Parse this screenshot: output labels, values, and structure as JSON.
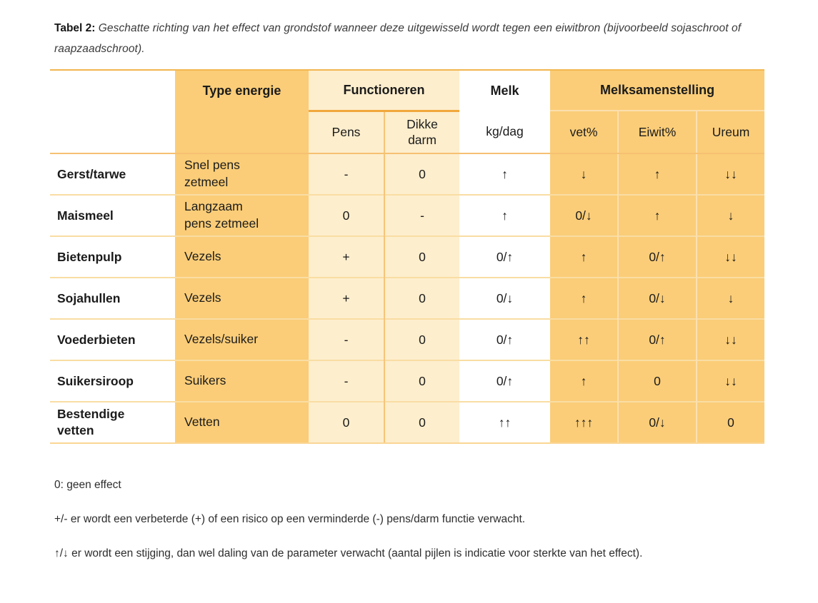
{
  "caption": {
    "label": "Tabel 2:",
    "text": "Geschatte richting van het effect van grondstof wanneer deze uitgewisseld wordt tegen een eiwitbron (bijvoorbeeld sojaschroot of raapzaadschroot)."
  },
  "table": {
    "header": {
      "type_energie": "Type energie",
      "functioneren": "Functioneren",
      "melk": "Melk",
      "melksamenstelling": "Melksamenstelling",
      "pens": "Pens",
      "dikke_darm": "Dikke darm",
      "kg_dag": "kg/dag",
      "vet": "vet%",
      "eiwit": "Eiwit%",
      "ureum": "Ureum"
    },
    "rows": [
      {
        "name": "Gerst/tarwe",
        "type": "Snel pens zetmeel",
        "pens": "-",
        "dikke_darm": "0",
        "melk": "↑",
        "vet": "↓",
        "eiwit": "↑",
        "ureum": "↓↓"
      },
      {
        "name": "Maismeel",
        "type": "Langzaam pens zetmeel",
        "pens": "0",
        "dikke_darm": "-",
        "melk": "↑",
        "vet": "0/↓",
        "eiwit": "↑",
        "ureum": "↓"
      },
      {
        "name": "Bietenpulp",
        "type": "Vezels",
        "pens": "+",
        "dikke_darm": "0",
        "melk": "0/↑",
        "vet": "↑",
        "eiwit": "0/↑",
        "ureum": "↓↓"
      },
      {
        "name": "Sojahullen",
        "type": "Vezels",
        "pens": "+",
        "dikke_darm": "0",
        "melk": "0/↓",
        "vet": "↑",
        "eiwit": "0/↓",
        "ureum": "↓"
      },
      {
        "name": "Voederbieten",
        "type": "Vezels/suiker",
        "pens": "-",
        "dikke_darm": "0",
        "melk": "0/↑",
        "vet": "↑↑",
        "eiwit": "0/↑",
        "ureum": "↓↓"
      },
      {
        "name": "Suikersiroop",
        "type": "Suikers",
        "pens": "-",
        "dikke_darm": "0",
        "melk": "0/↑",
        "vet": "↑",
        "eiwit": "0",
        "ureum": "↓↓"
      },
      {
        "name": "Bestendige vetten",
        "type": "Vetten",
        "pens": "0",
        "dikke_darm": "0",
        "melk": "↑↑",
        "vet": "↑↑↑",
        "eiwit": "0/↓",
        "ureum": "0"
      }
    ]
  },
  "notes": [
    "0: geen effect",
    "+/- er wordt een verbeterde (+) of een risico op een verminderde (-) pens/darm functie verwacht.",
    "↑/↓ er wordt een stijging, dan wel daling van de parameter verwacht (aantal pijlen is indicatie voor sterkte van het effect)."
  ],
  "colors": {
    "dark_orange": "#fbcd78",
    "light_orange": "#fdeecd",
    "accent_line": "#f1a83c",
    "row_line": "#f9dda3"
  }
}
